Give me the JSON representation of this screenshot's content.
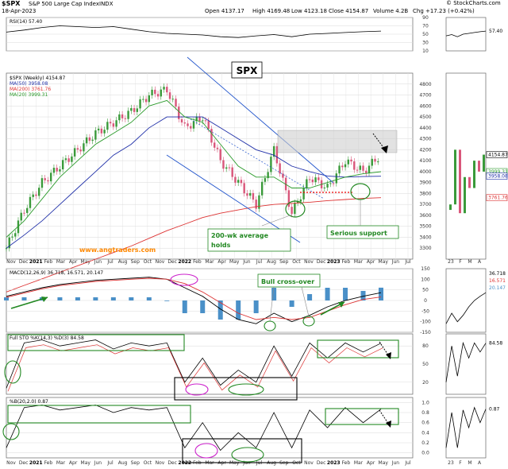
{
  "header": {
    "symbol": "$SPX",
    "name": "S&P 500 Large Cap Index",
    "exchange": "INDX",
    "date": "18-Apr-2023",
    "open": "Open 4137.17",
    "high": "High 4169.48",
    "low": "Low 4123.18",
    "close": "Close 4154.87",
    "volume": "Volume 4.2B",
    "change": "Chg +17.23 (+0.42%)",
    "credit": "© StockCharts.com"
  },
  "colors": {
    "up": "#3a9a3a",
    "down": "#d9567a",
    "ma50": "#1f2fa8",
    "ma200": "#d33",
    "ma20": "#2a9a2a",
    "annot_green": "#228822",
    "annot_blue": "#2255cc",
    "annot_magenta": "#cc22cc",
    "url": "#ff8800"
  },
  "chart_data": [
    {
      "type": "line",
      "panel": "rsi",
      "legend": "RSI(14) 57.40",
      "ylim": [
        10,
        90
      ],
      "yticks": [
        10,
        30,
        50,
        70,
        90
      ],
      "tick_labels": [
        "90",
        "70",
        "50",
        "30",
        "10"
      ],
      "x": [
        0,
        6,
        12,
        18,
        24,
        30,
        36,
        42,
        48,
        54,
        60,
        66,
        72,
        78,
        84,
        90,
        96,
        102,
        108,
        114,
        120,
        126
      ],
      "values": [
        55,
        60,
        66,
        70,
        68,
        66,
        68,
        62,
        56,
        52,
        50,
        48,
        44,
        42,
        46,
        49,
        44,
        50,
        52,
        54,
        56,
        57.4
      ],
      "right_label": "57.40"
    },
    {
      "type": "candlestick",
      "panel": "price",
      "title": "SPX",
      "legend": [
        "$SPX (Weekly) 4154.87",
        "MA(50) 3958.08",
        "MA(200) 3761.76",
        "MA(20) 3999.31"
      ],
      "ylim": [
        3200,
        4900
      ],
      "yticks": [
        3300,
        3400,
        3500,
        3600,
        3700,
        3800,
        3900,
        4000,
        4100,
        4200,
        4300,
        4400,
        4500,
        4600,
        4700,
        4800
      ],
      "x": [
        0,
        6,
        12,
        18,
        24,
        30,
        36,
        42,
        48,
        54,
        60,
        66,
        72,
        78,
        84,
        90,
        96,
        102,
        108,
        114,
        120,
        126
      ],
      "close": [
        3300,
        3650,
        3900,
        4050,
        4200,
        4350,
        4450,
        4550,
        4700,
        4750,
        4400,
        4500,
        4100,
        3900,
        3700,
        4200,
        3620,
        3950,
        3850,
        4100,
        4000,
        4154.87
      ],
      "ma20": [
        3400,
        3550,
        3750,
        3950,
        4100,
        4250,
        4350,
        4450,
        4600,
        4650,
        4500,
        4450,
        4250,
        4050,
        3950,
        3950,
        3850,
        3850,
        3900,
        3950,
        3980,
        3999.31
      ],
      "ma50": [
        3300,
        3420,
        3550,
        3700,
        3850,
        4000,
        4150,
        4250,
        4400,
        4500,
        4500,
        4500,
        4400,
        4300,
        4200,
        4150,
        4050,
        4000,
        3960,
        3950,
        3955,
        3958.08
      ],
      "ma200": [
        2900,
        2960,
        3020,
        3080,
        3140,
        3200,
        3260,
        3320,
        3390,
        3460,
        3520,
        3580,
        3620,
        3650,
        3680,
        3700,
        3710,
        3720,
        3735,
        3745,
        3755,
        3761.76
      ],
      "right_labels": [
        "4154.87",
        "3999.31",
        "3958.08",
        "3761.76"
      ],
      "url": "www.angtraders.com",
      "annotations": [
        "200-wk average",
        "holds",
        "Serious support"
      ]
    },
    {
      "type": "line",
      "panel": "macd",
      "legend": "MACD(12,26,9) 36.718, 16.571, 20.147",
      "ylim": [
        -150,
        150
      ],
      "yticks": [
        150,
        100,
        50,
        0,
        -50,
        -100,
        -150
      ],
      "tick_labels": [
        "150",
        "100",
        "50",
        "0",
        "-50",
        "-100",
        "-150"
      ],
      "x": [
        0,
        6,
        12,
        18,
        24,
        30,
        36,
        42,
        48,
        54,
        60,
        66,
        72,
        78,
        84,
        90,
        96,
        102,
        108,
        114,
        120,
        126
      ],
      "macd": [
        20,
        40,
        60,
        75,
        85,
        95,
        100,
        105,
        110,
        100,
        60,
        20,
        -40,
        -90,
        -110,
        -60,
        -100,
        -70,
        -30,
        0,
        20,
        36.718
      ],
      "signal": [
        15,
        35,
        55,
        70,
        80,
        90,
        95,
        100,
        105,
        100,
        80,
        40,
        -10,
        -60,
        -90,
        -80,
        -90,
        -80,
        -50,
        -20,
        5,
        16.571
      ],
      "annotations": [
        "Bull cross-over"
      ],
      "right_labels": [
        "36.718",
        "16.571",
        "20.147"
      ]
    },
    {
      "type": "line",
      "panel": "stochastics",
      "legend": "Full STO %K(14,3) %D(3) 84.58",
      "ylim": [
        0,
        100
      ],
      "yticks": [
        20,
        50,
        80
      ],
      "tick_labels": [
        "80",
        "50",
        "20"
      ],
      "x": [
        0,
        6,
        12,
        18,
        24,
        30,
        36,
        42,
        48,
        54,
        60,
        66,
        72,
        78,
        84,
        90,
        96,
        102,
        108,
        114,
        120,
        126
      ],
      "values": [
        10,
        85,
        90,
        80,
        85,
        90,
        75,
        85,
        80,
        85,
        20,
        60,
        15,
        40,
        20,
        80,
        30,
        85,
        60,
        85,
        70,
        84.58
      ],
      "right_label": "84.58"
    },
    {
      "type": "line",
      "panel": "percent_b",
      "legend": "%B(20,2.0) 0.87",
      "ylim": [
        -0.1,
        1.1
      ],
      "yticks": [
        0,
        0.2,
        0.4,
        0.6,
        0.8,
        1.0
      ],
      "tick_labels": [
        "1.0",
        "0.8",
        "0.6",
        "0.4",
        "0.2",
        "0.0"
      ],
      "x": [
        0,
        6,
        12,
        18,
        24,
        30,
        36,
        42,
        48,
        54,
        60,
        66,
        72,
        78,
        84,
        90,
        96,
        102,
        108,
        114,
        120,
        126
      ],
      "values": [
        0.1,
        0.9,
        0.95,
        0.85,
        0.9,
        0.95,
        0.8,
        0.9,
        0.85,
        0.9,
        0.1,
        0.6,
        0.05,
        0.4,
        0.1,
        0.8,
        0.1,
        0.85,
        0.5,
        0.9,
        0.6,
        0.87
      ],
      "right_label": "0.87"
    }
  ],
  "x_axis": {
    "labels": [
      "Nov",
      "Dec",
      "2021",
      "Feb",
      "Mar",
      "Apr",
      "May",
      "Jun",
      "Jul",
      "Aug",
      "Sep",
      "Oct",
      "Nov",
      "Dec",
      "2022",
      "Feb",
      "Mar",
      "Apr",
      "May",
      "Jun",
      "Jul",
      "Aug",
      "Sep",
      "Oct",
      "Nov",
      "Dec",
      "2023",
      "Feb",
      "Mar",
      "Apr",
      "May",
      "Jun",
      "Jul"
    ],
    "right_labels": [
      "23",
      "F",
      "M",
      "A"
    ]
  }
}
